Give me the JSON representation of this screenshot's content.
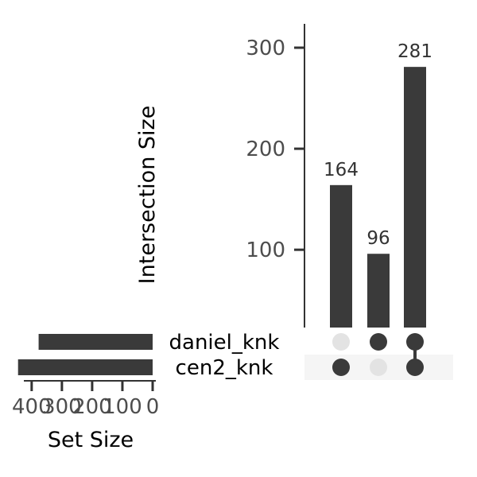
{
  "chart_data": {
    "type": "upset",
    "sets": [
      {
        "name": "daniel_knk",
        "size": 377
      },
      {
        "name": "cen2_knk",
        "size": 445
      }
    ],
    "intersections": [
      {
        "members": [
          "cen2_knk"
        ],
        "size": 164
      },
      {
        "members": [
          "daniel_knk"
        ],
        "size": 96
      },
      {
        "members": [
          "daniel_knk",
          "cen2_knk"
        ],
        "size": 281
      }
    ],
    "intersection_axis": {
      "label": "Intersection Size",
      "ticks": [
        100,
        200,
        300
      ],
      "range": [
        23,
        323
      ]
    },
    "set_size_axis": {
      "label": "Set Size",
      "ticks": [
        400,
        300,
        200,
        100,
        0
      ],
      "tick_labels": [
        "400",
        "300",
        "200",
        "100",
        "0"
      ],
      "range": [
        460,
        0
      ]
    },
    "colors": {
      "bar": "#3a3a3a",
      "dot_active": "#3a3a3a",
      "dot_inactive": "#e3e3e3",
      "stripe": "#f5f5f5",
      "axis": "#333333"
    }
  }
}
